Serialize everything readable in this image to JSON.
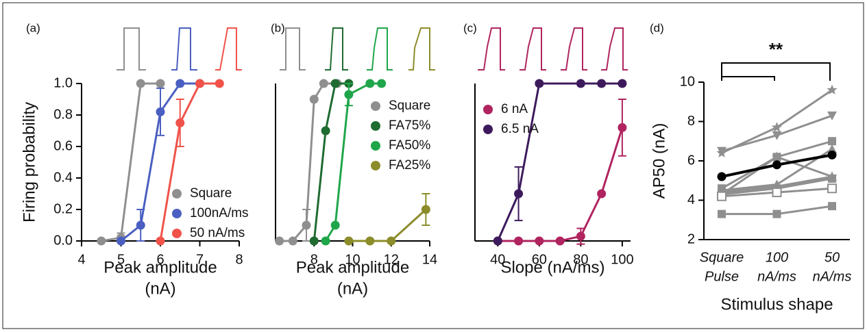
{
  "chart_data": [
    {
      "type": "line",
      "label": "(a)",
      "ylabel": "Firing probability",
      "xlabel": [
        "Peak amplitude",
        "(nA)"
      ],
      "xlim": [
        4,
        8
      ],
      "xticks": [
        4,
        5,
        6,
        7,
        8
      ],
      "ylim": [
        0,
        1
      ],
      "yticks": [
        {
          "value": 0,
          "label": "0.0"
        },
        0.2,
        0.4,
        0.6,
        0.8,
        {
          "value": 1,
          "label": "1.0"
        }
      ],
      "legend": "lower right",
      "series": [
        {
          "name": "Square",
          "color": "#8f8f8f",
          "x": [
            4.5,
            5,
            5.5,
            6
          ],
          "values": [
            0,
            0.02,
            1,
            1
          ],
          "errors": [
            null,
            0.03,
            null,
            null
          ]
        },
        {
          "name": "100nA/ms",
          "color": "#4a5fc1",
          "x": [
            5,
            5.5,
            6,
            6.5,
            7
          ],
          "values": [
            0,
            0.1,
            0.82,
            1,
            1
          ],
          "errors": [
            null,
            0.1,
            0.15,
            null,
            null
          ]
        },
        {
          "name": "50 nA/ms",
          "color": "#f0524a",
          "x": [
            6,
            6.5,
            7,
            7.5
          ],
          "values": [
            0,
            0.75,
            1,
            1
          ],
          "errors": [
            null,
            0.15,
            null,
            null
          ]
        }
      ]
    },
    {
      "type": "line",
      "label": "(b)",
      "xlabel": [
        "Peak amplitude",
        "(nA)"
      ],
      "xlim": [
        6,
        14
      ],
      "xticks": [
        8,
        10,
        12,
        14
      ],
      "ylim": [
        0,
        1
      ],
      "legend": "upper right",
      "series": [
        {
          "name": "Square",
          "color": "#8f8f8f",
          "x": [
            6.2,
            6.9,
            7.6,
            8,
            8.5,
            9.2
          ],
          "values": [
            0,
            0,
            0.1,
            0.9,
            1,
            1
          ],
          "errors": [
            null,
            null,
            0.1,
            null,
            null,
            null
          ]
        },
        {
          "name": "FA75%",
          "color": "#1f6b30",
          "x": [
            8,
            8.6,
            9.1,
            9.8
          ],
          "values": [
            0,
            0.7,
            1,
            1
          ],
          "errors": [
            null,
            null,
            null,
            null
          ]
        },
        {
          "name": "FA50%",
          "color": "#1fa64a",
          "x": [
            8.6,
            9.1,
            9.8,
            10.9,
            11.5
          ],
          "values": [
            0,
            0.1,
            0.93,
            1,
            1
          ],
          "errors": [
            null,
            null,
            0.07,
            null,
            null
          ]
        },
        {
          "name": "FA25%",
          "color": "#8c8c2a",
          "x": [
            9.8,
            10.9,
            12,
            13.8
          ],
          "values": [
            0,
            0,
            0,
            0.2
          ],
          "errors": [
            null,
            null,
            null,
            0.1
          ]
        }
      ]
    },
    {
      "type": "line",
      "label": "(c)",
      "xlabel": [
        "Slope (nA/ms)"
      ],
      "xlim": [
        29,
        104
      ],
      "xticks": [
        40,
        60,
        80,
        100
      ],
      "ylim": [
        0,
        1
      ],
      "legend": "upper left",
      "series": [
        {
          "name": "6 nA",
          "color": "#b0245f",
          "x": [
            40,
            50,
            60,
            70,
            80,
            90,
            100
          ],
          "values": [
            0,
            0,
            0,
            0,
            0.03,
            0.3,
            0.72
          ],
          "errors": [
            null,
            null,
            null,
            null,
            0.05,
            null,
            0.18
          ]
        },
        {
          "name": "6.5 nA",
          "color": "#3d1a5c",
          "x": [
            40,
            50,
            60,
            80,
            90,
            100
          ],
          "values": [
            0,
            0.3,
            1,
            1,
            1,
            1
          ],
          "errors": [
            null,
            0.17,
            null,
            null,
            null,
            null
          ]
        }
      ]
    },
    {
      "type": "line",
      "label": "(d)",
      "ylabel": "AP50 (nA)",
      "xlabel": [
        "Stimulus shape"
      ],
      "annotation": "**",
      "categories": [
        [
          "Square",
          "Pulse"
        ],
        [
          "100",
          "nA/ms"
        ],
        [
          "50",
          "nA/ms"
        ]
      ],
      "ylim": [
        2,
        10
      ],
      "yticks": [
        2,
        4,
        6,
        8,
        10
      ],
      "series": [
        {
          "color": "#8f8f8f",
          "marker": "star",
          "values": [
            6.4,
            7.7,
            9.6
          ]
        },
        {
          "color": "#8f8f8f",
          "marker": "triangle-down",
          "values": [
            6.5,
            7.3,
            8.3
          ]
        },
        {
          "color": "#8f8f8f",
          "marker": "square",
          "values": [
            4.6,
            6.2,
            7.0
          ]
        },
        {
          "color": "#8f8f8f",
          "marker": "triangle-up",
          "values": [
            4.5,
            4.8,
            6.6
          ]
        },
        {
          "color": "#8f8f8f",
          "marker": "star",
          "values": [
            4.3,
            6.2,
            5.2
          ]
        },
        {
          "color": "#8f8f8f",
          "marker": "triangle-up",
          "values": [
            4.4,
            4.7,
            5.2
          ]
        },
        {
          "color": "#8f8f8f",
          "marker": "square",
          "values": [
            4.3,
            4.6,
            5.1
          ]
        },
        {
          "color": "#8f8f8f",
          "marker": "open-square",
          "values": [
            4.2,
            4.4,
            4.6
          ]
        },
        {
          "color": "#8f8f8f",
          "marker": "square",
          "values": [
            3.3,
            3.3,
            3.7
          ]
        },
        {
          "color": "#000000",
          "marker": "circle",
          "width": 4,
          "values": [
            5.2,
            5.8,
            6.3
          ]
        }
      ]
    }
  ]
}
